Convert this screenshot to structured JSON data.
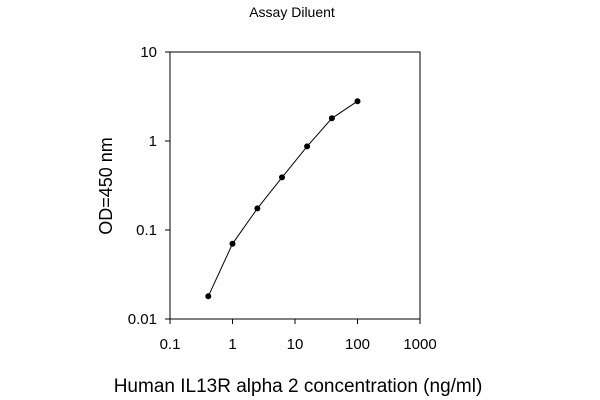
{
  "chart_data": {
    "type": "line",
    "title": "Assay Diluent",
    "xlabel": "Human IL13R alpha 2 concentration (ng/ml)",
    "ylabel": "OD=450 nm",
    "x_scale": "log",
    "y_scale": "log",
    "xlim": [
      0.1,
      1000
    ],
    "ylim": [
      0.01,
      10
    ],
    "x_ticks": [
      "0.1",
      "1",
      "10",
      "100",
      "1000"
    ],
    "y_ticks": [
      "0.01",
      "0.1",
      "1",
      "10"
    ],
    "grid": false,
    "legend": "none",
    "markers": true,
    "series": [
      {
        "x": [
          0.41,
          1.0,
          2.5,
          6.2,
          15.6,
          39.0,
          100.0
        ],
        "y": [
          0.018,
          0.07,
          0.175,
          0.39,
          0.87,
          1.8,
          2.8
        ]
      }
    ]
  },
  "colors": {
    "line": "#000000",
    "marker": "#000000",
    "axis": "#000000",
    "background": "#ffffff"
  }
}
